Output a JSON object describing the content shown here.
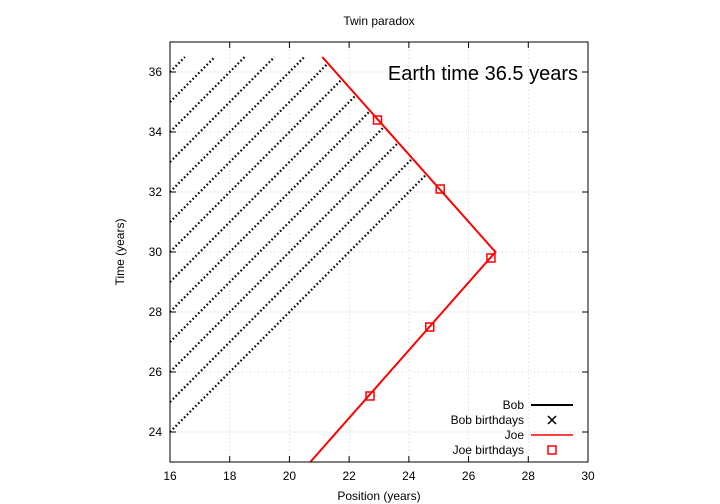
{
  "chart_data": {
    "type": "scatter",
    "title": "Twin paradox",
    "xlabel": "Position (years)",
    "ylabel": "Time (years)",
    "xlim": [
      16,
      30
    ],
    "ylim": [
      23,
      37
    ],
    "xticks": [
      16,
      18,
      20,
      22,
      24,
      26,
      28,
      30
    ],
    "yticks": [
      24,
      26,
      28,
      30,
      32,
      34,
      36
    ],
    "grid": true,
    "legend_position": "bottom-right",
    "annotation": "Earth time 36.5 years",
    "colors": {
      "bob": "#000000",
      "joe": "#ff0000",
      "grid": "#bbbbbb"
    },
    "bob_worldlines": {
      "slope": 1,
      "intercepts": [
        8,
        9,
        10,
        11,
        12,
        13,
        14,
        15,
        16,
        17,
        18,
        19,
        20
      ],
      "t_max": 36.5,
      "x_max": 26.8
    },
    "joe_worldline": [
      [
        20.7,
        23.0
      ],
      [
        26.9,
        30.0
      ],
      [
        21.1,
        36.5
      ]
    ],
    "series": [
      {
        "name": "Bob",
        "marker": "line"
      },
      {
        "name": "Bob birthdays",
        "marker": "cross"
      },
      {
        "name": "Joe",
        "marker": "line"
      },
      {
        "name": "Joe birthdays",
        "marker": "square",
        "points": [
          [
            22.7,
            25.2
          ],
          [
            24.7,
            27.5
          ],
          [
            26.75,
            29.8
          ],
          [
            25.05,
            32.1
          ],
          [
            22.95,
            34.4
          ]
        ]
      }
    ]
  }
}
